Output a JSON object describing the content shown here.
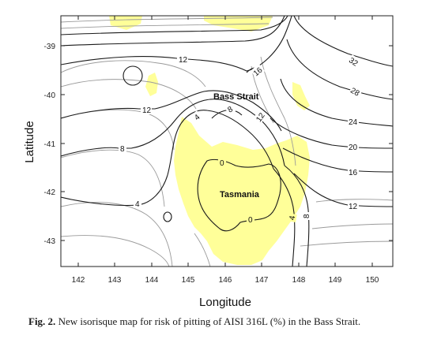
{
  "map": {
    "xlabel": "Longitude",
    "ylabel": "Latitude",
    "x_ticks": [
      "142",
      "143",
      "144",
      "145",
      "146",
      "147",
      "148",
      "149",
      "150"
    ],
    "y_ticks": [
      "-39",
      "-40",
      "-41",
      "-42",
      "-43"
    ],
    "place_labels": {
      "strait": "Bass Strait",
      "island": "Tasmania"
    },
    "contour_labels": [
      "12",
      "16",
      "32",
      "28",
      "24",
      "20",
      "16",
      "12",
      "12",
      "8",
      "4",
      "8",
      "12",
      "4",
      "0",
      "0",
      "4",
      "8"
    ],
    "colors": {
      "land": "#ffff99",
      "major_contour": "#1a1a1a",
      "minor_contour": "#9a9a9a"
    }
  },
  "caption": {
    "label": "Fig. 2.",
    "text": "New isorisque map for risk of pitting of AISI 316L (%) in the Bass Strait."
  }
}
